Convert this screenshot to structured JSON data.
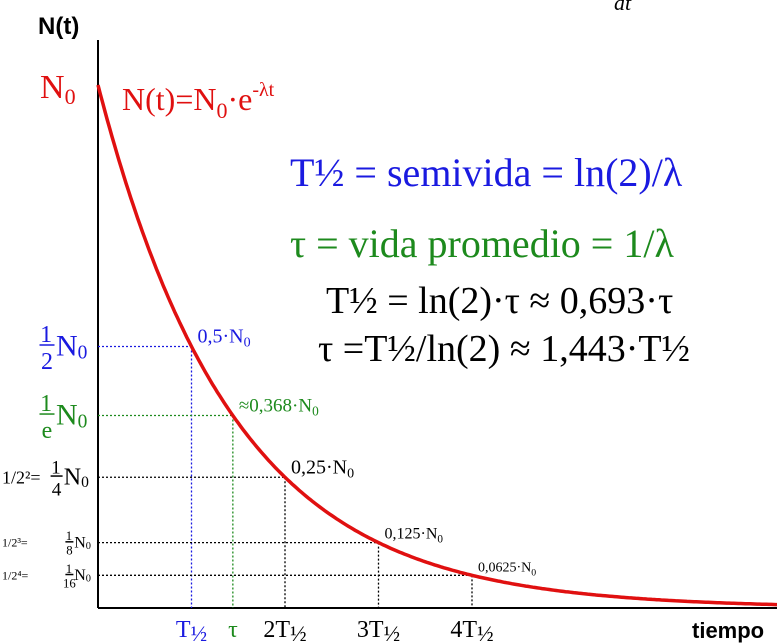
{
  "chart_data": {
    "type": "line",
    "title": "",
    "xlabel": "tiempo",
    "ylabel": "N(t)",
    "top_fragment": "dt",
    "y_start_label": "N0",
    "equation": {
      "lhs": "N(t)=N",
      "sub": "0",
      "mid": "·e",
      "sup": "-λt"
    },
    "formulas": [
      {
        "name": "halflife",
        "text": "T½ = semivida = ln(2)/λ",
        "color": "#1a1ae0"
      },
      {
        "name": "mean-life",
        "text": "τ = vida promedio = 1/λ",
        "color": "#1d8a1d"
      },
      {
        "name": "relation-1",
        "text": "T½ = ln(2)·τ ≈ 0,693·τ",
        "color": "#000000"
      },
      {
        "name": "relation-2",
        "text": "τ =T½/ln(2) ≈ 1,443·T½",
        "color": "#000000"
      }
    ],
    "y_levels": [
      {
        "name": "half",
        "value": 0.5,
        "left_num": "1",
        "left_den": "2",
        "left_pre": "",
        "point_label": "0,5·N0",
        "color": "#1a1ae0"
      },
      {
        "name": "one-over-e",
        "value": 0.368,
        "left_num": "1",
        "left_den": "e",
        "left_pre": "",
        "point_label": "≈0,368·N0",
        "color": "#1d8a1d"
      },
      {
        "name": "quarter",
        "value": 0.25,
        "left_num": "1",
        "left_den": "4",
        "left_pre": "1/2²=",
        "point_label": "0,25·N0",
        "color": "#000000"
      },
      {
        "name": "eighth",
        "value": 0.125,
        "left_num": "1",
        "left_den": "8",
        "left_pre": "1/2³=",
        "point_label": "0,125·N0",
        "color": "#000000"
      },
      {
        "name": "sixteenth",
        "value": 0.0625,
        "left_num": "1",
        "left_den": "16",
        "left_pre": "1/2⁴=",
        "point_label": "0,0625·N0",
        "color": "#000000"
      }
    ],
    "x_ticks": [
      {
        "name": "t-half",
        "x": 1,
        "label": "T½",
        "color": "#1a1ae0"
      },
      {
        "name": "tau",
        "x": 1.4427,
        "label": "τ",
        "color": "#1d8a1d"
      },
      {
        "name": "2t-half",
        "x": 2,
        "label": "2T½",
        "color": "#000000"
      },
      {
        "name": "3t-half",
        "x": 3,
        "label": "3T½",
        "color": "#000000"
      },
      {
        "name": "4t-half",
        "x": 4,
        "label": "4T½",
        "color": "#000000"
      }
    ],
    "series": [
      {
        "function": "N(t)=N0·e^(-λt)",
        "x_unit": "T½",
        "x_range": [
          0,
          7.5
        ],
        "color": "#e01010"
      }
    ],
    "xlim": [
      0,
      7.5
    ],
    "ylim": [
      0,
      1
    ],
    "grid": false
  }
}
